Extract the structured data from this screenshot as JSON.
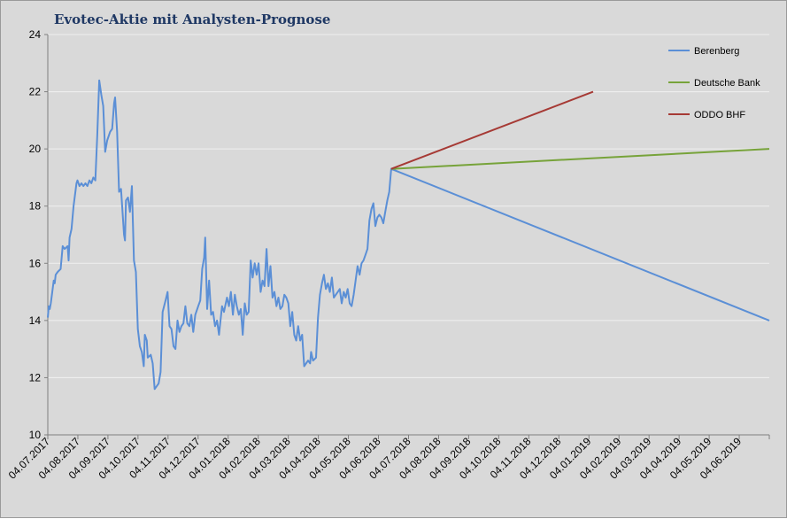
{
  "chart_data": {
    "type": "line",
    "title": "Evotec-Aktie mit Analysten-Prognose",
    "xlabel": "",
    "ylabel": "",
    "ylim": [
      10,
      24
    ],
    "yticks": [
      10,
      12,
      14,
      16,
      18,
      20,
      22,
      24
    ],
    "xlim": [
      "2017-07-04",
      "2019-07-03"
    ],
    "xtick_labels": [
      "04.07.2017",
      "04.08.2017",
      "04.09.2017",
      "04.10.2017",
      "04.11.2017",
      "04.12.2017",
      "04.01.2018",
      "04.02.2018",
      "04.03.2018",
      "04.04.2018",
      "04.05.2018",
      "04.06.2018",
      "04.07.2018",
      "04.08.2018",
      "04.09.2018",
      "04.10.2018",
      "04.11.2018",
      "04.12.2018",
      "04.01.2019",
      "04.02.2019",
      "04.03.2019",
      "04.04.2019",
      "04.05.2019",
      "04.06.2019"
    ],
    "grid": "horizontal",
    "legend_position": "right",
    "colors": {
      "background": "#d9d9d9",
      "grid": "#f0f0f0"
    },
    "series": [
      {
        "name": "Berenberg",
        "color": "#5b8fd6",
        "points": [
          [
            "2017-07-04",
            14.1
          ],
          [
            "2017-07-05",
            14.5
          ],
          [
            "2017-07-06",
            14.4
          ],
          [
            "2017-07-07",
            14.6
          ],
          [
            "2017-07-10",
            15.4
          ],
          [
            "2017-07-11",
            15.3
          ],
          [
            "2017-07-12",
            15.6
          ],
          [
            "2017-07-14",
            15.7
          ],
          [
            "2017-07-17",
            15.8
          ],
          [
            "2017-07-19",
            16.6
          ],
          [
            "2017-07-21",
            16.5
          ],
          [
            "2017-07-24",
            16.6
          ],
          [
            "2017-07-25",
            16.1
          ],
          [
            "2017-07-26",
            16.9
          ],
          [
            "2017-07-28",
            17.2
          ],
          [
            "2017-07-30",
            18.0
          ],
          [
            "2017-08-02",
            18.8
          ],
          [
            "2017-08-03",
            18.9
          ],
          [
            "2017-08-05",
            18.7
          ],
          [
            "2017-08-07",
            18.8
          ],
          [
            "2017-08-09",
            18.7
          ],
          [
            "2017-08-11",
            18.8
          ],
          [
            "2017-08-13",
            18.7
          ],
          [
            "2017-08-15",
            18.9
          ],
          [
            "2017-08-17",
            18.8
          ],
          [
            "2017-08-19",
            19.0
          ],
          [
            "2017-08-21",
            18.9
          ],
          [
            "2017-08-23",
            20.5
          ],
          [
            "2017-08-25",
            22.4
          ],
          [
            "2017-08-27",
            21.9
          ],
          [
            "2017-08-29",
            21.5
          ],
          [
            "2017-08-31",
            19.9
          ],
          [
            "2017-09-02",
            20.3
          ],
          [
            "2017-09-05",
            20.6
          ],
          [
            "2017-09-07",
            20.7
          ],
          [
            "2017-09-09",
            21.6
          ],
          [
            "2017-09-10",
            21.8
          ],
          [
            "2017-09-12",
            20.6
          ],
          [
            "2017-09-14",
            18.5
          ],
          [
            "2017-09-16",
            18.6
          ],
          [
            "2017-09-19",
            17.0
          ],
          [
            "2017-09-20",
            16.8
          ],
          [
            "2017-09-21",
            18.2
          ],
          [
            "2017-09-23",
            18.3
          ],
          [
            "2017-09-25",
            17.8
          ],
          [
            "2017-09-27",
            18.7
          ],
          [
            "2017-09-29",
            16.1
          ],
          [
            "2017-10-01",
            15.7
          ],
          [
            "2017-10-03",
            13.7
          ],
          [
            "2017-10-05",
            13.1
          ],
          [
            "2017-10-07",
            12.9
          ],
          [
            "2017-10-09",
            12.4
          ],
          [
            "2017-10-10",
            13.5
          ],
          [
            "2017-10-12",
            13.3
          ],
          [
            "2017-10-13",
            12.7
          ],
          [
            "2017-10-16",
            12.8
          ],
          [
            "2017-10-18",
            12.5
          ],
          [
            "2017-10-20",
            11.6
          ],
          [
            "2017-10-22",
            11.7
          ],
          [
            "2017-10-24",
            11.8
          ],
          [
            "2017-10-26",
            12.2
          ],
          [
            "2017-10-28",
            14.3
          ],
          [
            "2017-10-31",
            14.7
          ],
          [
            "2017-11-02",
            15.0
          ],
          [
            "2017-11-04",
            13.8
          ],
          [
            "2017-11-06",
            13.7
          ],
          [
            "2017-11-08",
            13.1
          ],
          [
            "2017-11-10",
            13.0
          ],
          [
            "2017-11-12",
            14.0
          ],
          [
            "2017-11-14",
            13.6
          ],
          [
            "2017-11-16",
            13.8
          ],
          [
            "2017-11-18",
            13.9
          ],
          [
            "2017-11-20",
            14.5
          ],
          [
            "2017-11-22",
            13.9
          ],
          [
            "2017-11-24",
            13.8
          ],
          [
            "2017-11-26",
            14.2
          ],
          [
            "2017-11-28",
            13.6
          ],
          [
            "2017-11-30",
            14.2
          ],
          [
            "2017-12-03",
            14.5
          ],
          [
            "2017-12-05",
            14.7
          ],
          [
            "2017-12-07",
            15.8
          ],
          [
            "2017-12-09",
            16.2
          ],
          [
            "2017-12-10",
            16.9
          ],
          [
            "2017-12-12",
            14.4
          ],
          [
            "2017-12-14",
            15.4
          ],
          [
            "2017-12-16",
            14.2
          ],
          [
            "2017-12-18",
            14.3
          ],
          [
            "2017-12-20",
            13.8
          ],
          [
            "2017-12-22",
            14.0
          ],
          [
            "2017-12-24",
            13.5
          ],
          [
            "2017-12-27",
            14.5
          ],
          [
            "2017-12-29",
            14.3
          ],
          [
            "2018-01-01",
            14.8
          ],
          [
            "2018-01-03",
            14.5
          ],
          [
            "2018-01-05",
            15.0
          ],
          [
            "2018-01-07",
            14.2
          ],
          [
            "2018-01-09",
            14.9
          ],
          [
            "2018-01-11",
            14.5
          ],
          [
            "2018-01-13",
            14.2
          ],
          [
            "2018-01-15",
            14.4
          ],
          [
            "2018-01-17",
            13.5
          ],
          [
            "2018-01-19",
            14.6
          ],
          [
            "2018-01-21",
            14.2
          ],
          [
            "2018-01-23",
            14.3
          ],
          [
            "2018-01-25",
            16.1
          ],
          [
            "2018-01-27",
            15.5
          ],
          [
            "2018-01-29",
            16.0
          ],
          [
            "2018-01-31",
            15.6
          ],
          [
            "2018-02-02",
            16.0
          ],
          [
            "2018-02-04",
            15.0
          ],
          [
            "2018-02-06",
            15.4
          ],
          [
            "2018-02-08",
            15.2
          ],
          [
            "2018-02-10",
            16.5
          ],
          [
            "2018-02-12",
            15.2
          ],
          [
            "2018-02-14",
            15.9
          ],
          [
            "2018-02-16",
            14.8
          ],
          [
            "2018-02-18",
            15.0
          ],
          [
            "2018-02-20",
            14.5
          ],
          [
            "2018-02-22",
            14.8
          ],
          [
            "2018-02-24",
            14.4
          ],
          [
            "2018-02-26",
            14.5
          ],
          [
            "2018-02-28",
            14.9
          ],
          [
            "2018-03-02",
            14.8
          ],
          [
            "2018-03-04",
            14.6
          ],
          [
            "2018-03-06",
            13.8
          ],
          [
            "2018-03-08",
            14.3
          ],
          [
            "2018-03-10",
            13.5
          ],
          [
            "2018-03-12",
            13.3
          ],
          [
            "2018-03-14",
            13.8
          ],
          [
            "2018-03-16",
            13.3
          ],
          [
            "2018-03-18",
            13.5
          ],
          [
            "2018-03-20",
            12.4
          ],
          [
            "2018-03-22",
            12.5
          ],
          [
            "2018-03-24",
            12.6
          ],
          [
            "2018-03-26",
            12.5
          ],
          [
            "2018-03-27",
            12.9
          ],
          [
            "2018-03-29",
            12.6
          ],
          [
            "2018-04-01",
            12.7
          ],
          [
            "2018-04-03",
            14.1
          ],
          [
            "2018-04-05",
            14.9
          ],
          [
            "2018-04-07",
            15.3
          ],
          [
            "2018-04-09",
            15.6
          ],
          [
            "2018-04-11",
            15.1
          ],
          [
            "2018-04-13",
            15.3
          ],
          [
            "2018-04-15",
            15.0
          ],
          [
            "2018-04-17",
            15.5
          ],
          [
            "2018-04-19",
            14.8
          ],
          [
            "2018-04-21",
            14.9
          ],
          [
            "2018-04-23",
            15.0
          ],
          [
            "2018-04-25",
            15.1
          ],
          [
            "2018-04-27",
            14.6
          ],
          [
            "2018-04-29",
            15.0
          ],
          [
            "2018-05-01",
            14.8
          ],
          [
            "2018-05-03",
            15.1
          ],
          [
            "2018-05-05",
            14.6
          ],
          [
            "2018-05-07",
            14.5
          ],
          [
            "2018-05-09",
            14.9
          ],
          [
            "2018-05-11",
            15.4
          ],
          [
            "2018-05-13",
            15.9
          ],
          [
            "2018-05-15",
            15.6
          ],
          [
            "2018-05-17",
            16.0
          ],
          [
            "2018-05-19",
            16.1
          ],
          [
            "2018-05-21",
            16.3
          ],
          [
            "2018-05-23",
            16.5
          ],
          [
            "2018-05-25",
            17.5
          ],
          [
            "2018-05-27",
            17.9
          ],
          [
            "2018-05-29",
            18.1
          ],
          [
            "2018-05-31",
            17.3
          ],
          [
            "2018-06-02",
            17.6
          ],
          [
            "2018-06-04",
            17.7
          ],
          [
            "2018-06-06",
            17.6
          ],
          [
            "2018-06-08",
            17.4
          ],
          [
            "2018-06-10",
            17.8
          ],
          [
            "2018-06-12",
            18.2
          ],
          [
            "2018-06-14",
            18.5
          ],
          [
            "2018-06-16",
            19.3
          ],
          [
            "2019-07-03",
            14.0
          ]
        ]
      },
      {
        "name": "Deutsche Bank",
        "color": "#77a33a",
        "points": [
          [
            "2018-06-16",
            19.3
          ],
          [
            "2019-07-03",
            20.0
          ]
        ]
      },
      {
        "name": "ODDO BHF",
        "color": "#a63a35",
        "points": [
          [
            "2018-06-16",
            19.3
          ],
          [
            "2019-01-06",
            22.0
          ]
        ]
      }
    ]
  }
}
